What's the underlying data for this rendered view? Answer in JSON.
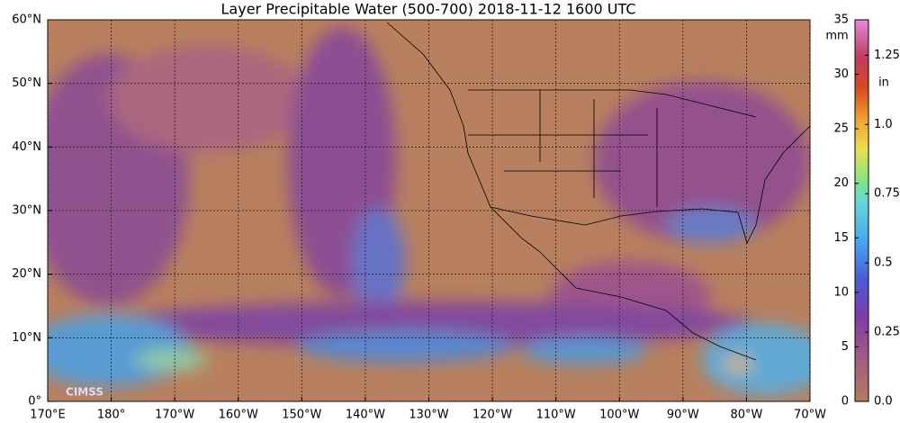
{
  "title": "Layer Precipitable Water (500-700)  2018-11-12 1600 UTC",
  "map": {
    "xlim": [
      170,
      290
    ],
    "ylim": [
      0,
      60
    ],
    "xticks": [
      {
        "value": 170,
        "label": "170°E"
      },
      {
        "value": 180,
        "label": "180°"
      },
      {
        "value": 190,
        "label": "170°W"
      },
      {
        "value": 200,
        "label": "160°W"
      },
      {
        "value": 210,
        "label": "150°W"
      },
      {
        "value": 220,
        "label": "140°W"
      },
      {
        "value": 230,
        "label": "130°W"
      },
      {
        "value": 240,
        "label": "120°W"
      },
      {
        "value": 250,
        "label": "110°W"
      },
      {
        "value": 260,
        "label": "100°W"
      },
      {
        "value": 270,
        "label": "90°W"
      },
      {
        "value": 280,
        "label": "80°W"
      },
      {
        "value": 290,
        "label": "70°W"
      }
    ],
    "yticks": [
      {
        "value": 0,
        "label": "0°"
      },
      {
        "value": 10,
        "label": "10°N"
      },
      {
        "value": 20,
        "label": "20°N"
      },
      {
        "value": 30,
        "label": "30°N"
      },
      {
        "value": 40,
        "label": "40°N"
      },
      {
        "value": 50,
        "label": "50°N"
      },
      {
        "value": 60,
        "label": "60°N"
      }
    ],
    "grid": true,
    "logo": "CIMSS"
  },
  "colorbar": {
    "mm_unit": "mm",
    "mm_lim": [
      0,
      35
    ],
    "mm_ticks": [
      0,
      5,
      10,
      15,
      20,
      25,
      30,
      35
    ],
    "in_unit": "in",
    "in_lim": [
      0,
      1.378
    ],
    "in_ticks": [
      {
        "value": 0,
        "label": "0.0"
      },
      0.25,
      0.5,
      0.75,
      {
        "value": 1,
        "label": "1.0"
      },
      1.25
    ]
  }
}
